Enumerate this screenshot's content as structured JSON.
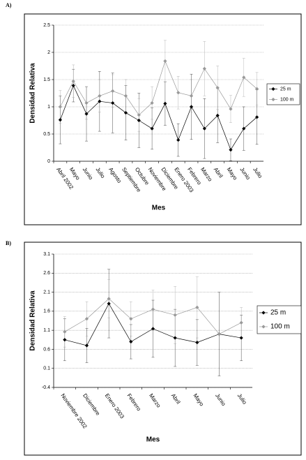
{
  "chart_data": [
    {
      "type": "line",
      "label": "A)",
      "y_label": "Densidad Relativa",
      "x_label": "Mes",
      "categories": [
        "Abril 2002",
        "Mayo",
        "Junio",
        "Julio",
        "Agosto",
        "Septiembre",
        "Octubre",
        "Noviembre",
        "Diciembre",
        "Enero 2003",
        "Febrero",
        "Marzo",
        "Abril",
        "Mayo",
        "Junio",
        "Julio"
      ],
      "series": [
        {
          "name": "25 m",
          "color": "#000000",
          "values": [
            0.76,
            1.39,
            0.87,
            1.1,
            1.07,
            0.89,
            0.75,
            0.6,
            1.06,
            0.39,
            1.0,
            0.6,
            0.84,
            0.21,
            0.6,
            0.81
          ],
          "errors": [
            0.44,
            0.3,
            0.5,
            0.55,
            0.55,
            0.5,
            0.5,
            0.38,
            0.4,
            0.3,
            0.6,
            0.55,
            0.5,
            0.2,
            0.4,
            0.5
          ]
        },
        {
          "name": "100 m",
          "color": "#999999",
          "values": [
            1.0,
            1.47,
            1.07,
            1.2,
            1.29,
            1.2,
            0.85,
            1.07,
            1.84,
            1.26,
            1.2,
            1.7,
            1.35,
            0.96,
            1.54,
            1.33
          ],
          "errors": [
            0.3,
            0.3,
            0.3,
            0.3,
            0.3,
            0.3,
            0.3,
            0.3,
            0.38,
            0.3,
            0.3,
            0.5,
            0.4,
            0.25,
            0.35,
            0.3
          ]
        }
      ],
      "ylim": [
        0,
        2.5
      ],
      "yticks": [
        0,
        0.5,
        1,
        1.5,
        2,
        2.5
      ],
      "grid": true
    },
    {
      "type": "line",
      "label": "B)",
      "y_label": "Densidad Relativa",
      "x_label": "Mes",
      "categories": [
        "Noviembre 2002",
        "Diciembre",
        "Enero 2003",
        "Febrero",
        "Marzo",
        "Abril",
        "Mayo",
        "Junio",
        "Julio"
      ],
      "series": [
        {
          "name": "25 m",
          "color": "#000000",
          "values": [
            0.85,
            0.7,
            1.8,
            0.8,
            1.14,
            0.9,
            0.78,
            1.0,
            0.9
          ],
          "errors": [
            0.55,
            0.45,
            0.9,
            0.45,
            0.75,
            0.75,
            0.6,
            1.1,
            0.6
          ]
        },
        {
          "name": "100 m",
          "color": "#999999",
          "values": [
            1.06,
            1.4,
            1.93,
            1.4,
            1.65,
            1.5,
            1.7,
            1.0,
            1.3
          ],
          "errors": [
            0.4,
            0.45,
            0.5,
            0.45,
            0.5,
            0.75,
            0.8,
            1.1,
            0.4
          ]
        }
      ],
      "ylim": [
        -0.4,
        3.1
      ],
      "yticks": [
        -0.4,
        0.1,
        0.6,
        1.1,
        1.6,
        2.1,
        2.6,
        3.1
      ],
      "grid": true
    }
  ]
}
